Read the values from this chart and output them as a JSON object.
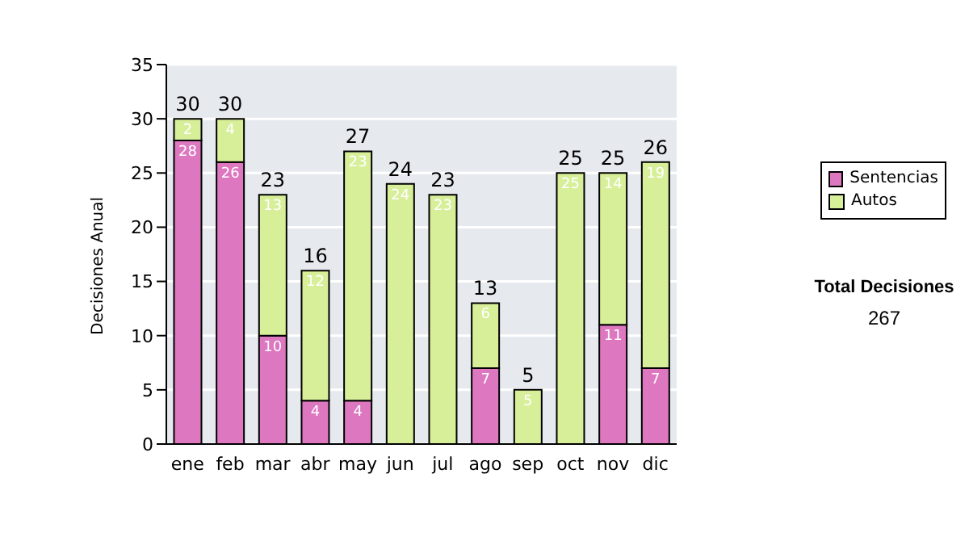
{
  "chart_data": {
    "type": "bar",
    "stacked": true,
    "ylabel": "Decisiones Anual",
    "categories": [
      "ene",
      "feb",
      "mar",
      "abr",
      "may",
      "jun",
      "jul",
      "ago",
      "sep",
      "oct",
      "nov",
      "dic"
    ],
    "series": [
      {
        "name": "Sentencias",
        "color": "#dd77c0",
        "values": [
          28,
          26,
          10,
          4,
          4,
          0,
          0,
          7,
          0,
          0,
          11,
          7
        ],
        "value_labels": [
          "28",
          "26",
          "10",
          "4",
          "4",
          null,
          null,
          "7",
          null,
          null,
          "11",
          "7"
        ]
      },
      {
        "name": "Autos",
        "color": "#d8ef9a",
        "values": [
          2,
          4,
          13,
          12,
          23,
          24,
          23,
          6,
          5,
          25,
          14,
          19
        ],
        "value_labels": [
          "2",
          "4",
          "13",
          "12",
          "23",
          "24",
          "23",
          "6",
          "5",
          "25",
          "14",
          "19"
        ]
      }
    ],
    "totals": [
      "30",
      "30",
      "23",
      "16",
      "27",
      "24",
      "23",
      "13",
      "5",
      "25",
      "25",
      "26"
    ],
    "ylim": [
      0,
      35
    ],
    "yticks": [
      0,
      5,
      10,
      15,
      20,
      25,
      30,
      35
    ],
    "grid": "y",
    "legend": "right",
    "annotations": [
      "Total Decisiones",
      "267"
    ]
  }
}
